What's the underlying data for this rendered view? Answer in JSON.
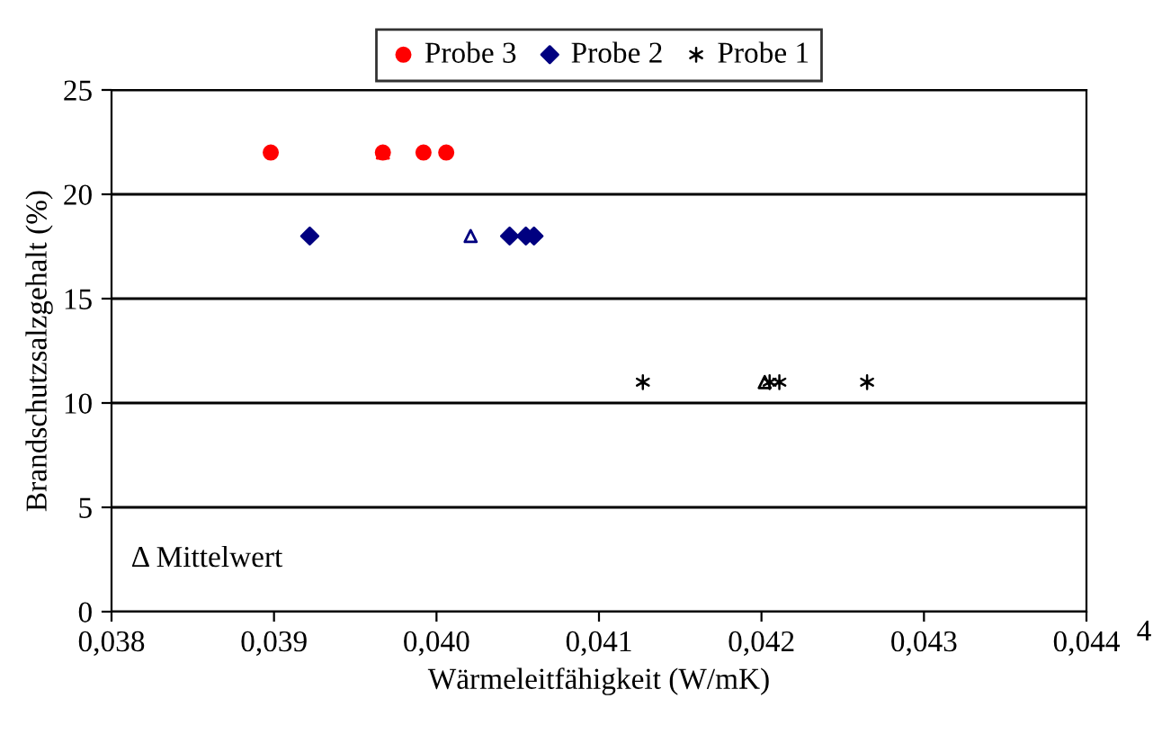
{
  "chart_data": {
    "type": "scatter",
    "xlabel": "Wärmeleitfähigkeit (W/mK)",
    "ylabel": "Brandschutzsalzgehalt (%)",
    "xlim": [
      0.038,
      0.044
    ],
    "ylim": [
      0,
      25
    ],
    "xticks": [
      {
        "value": 0.038,
        "label": "0,038"
      },
      {
        "value": 0.039,
        "label": "0,039"
      },
      {
        "value": 0.04,
        "label": "0,040"
      },
      {
        "value": 0.041,
        "label": "0,041"
      },
      {
        "value": 0.042,
        "label": "0,042"
      },
      {
        "value": 0.043,
        "label": "0,043"
      },
      {
        "value": 0.044,
        "label": "0,044"
      }
    ],
    "yticks": [
      0,
      5,
      10,
      15,
      20,
      25
    ],
    "grid": "y",
    "legend": "top",
    "series": [
      {
        "name": "Probe 3",
        "color": "#ff0000",
        "marker": "circle",
        "x": [
          0.03898,
          0.03967,
          0.03992,
          0.04006
        ],
        "values": [
          22,
          22,
          22,
          22
        ]
      },
      {
        "name": "Probe 2",
        "color": "#000080",
        "marker": "diamond",
        "x": [
          0.03922,
          0.04045,
          0.04055,
          0.0406
        ],
        "values": [
          18,
          18,
          18,
          18
        ]
      },
      {
        "name": "Probe 1",
        "color": "#000000",
        "marker": "cross",
        "x": [
          0.04127,
          0.04205,
          0.04211,
          0.04265
        ],
        "values": [
          11,
          11,
          11,
          11
        ]
      },
      {
        "color": "#ff0000",
        "marker": "triangle",
        "x": [
          0.03967
        ],
        "values": [
          22
        ]
      },
      {
        "color": "#000080",
        "marker": "triangle",
        "x": [
          0.04021
        ],
        "values": [
          18
        ]
      },
      {
        "color": "#000000",
        "marker": "triangle",
        "x": [
          0.04202
        ],
        "values": [
          11
        ]
      }
    ],
    "annotations": [
      "Δ Mittelwert",
      "4"
    ]
  }
}
